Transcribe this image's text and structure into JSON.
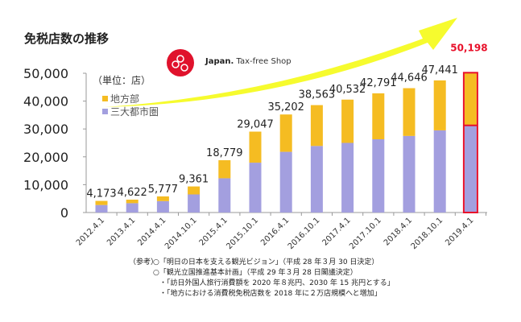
{
  "chart_data": {
    "type": "bar",
    "stacked": true,
    "title": "免税店数の推移",
    "unit_label": "（単位：店）",
    "categories": [
      "2012.4.1",
      "2013.4.1",
      "2014.4.1",
      "2014.10.1",
      "2015.4.1",
      "2015.10.1",
      "2016.4.1",
      "2016.10.1",
      "2017.4.1",
      "2017.10.1",
      "2018.4.1",
      "2018.10.1",
      "2019.4.1"
    ],
    "totals": [
      4173,
      4622,
      5777,
      9361,
      18779,
      29047,
      35202,
      38563,
      40532,
      42791,
      44646,
      47441,
      50198
    ],
    "total_labels": [
      "4,173",
      "4,622",
      "5,777",
      "9,361",
      "18,779",
      "29,047",
      "35,202",
      "38,563",
      "40,532",
      "42,791",
      "44,646",
      "47,441",
      "50,198"
    ],
    "series": [
      {
        "name": "三大都市圏",
        "color": "#a39fdf",
        "values": [
          2700,
          3350,
          4100,
          6500,
          12300,
          17900,
          21800,
          23900,
          25000,
          26300,
          27500,
          29500,
          31300
        ]
      },
      {
        "name": "地方部",
        "color": "#f5bc22",
        "values": [
          1473,
          1272,
          1677,
          2861,
          6479,
          11147,
          13402,
          14663,
          15532,
          16491,
          17146,
          17941,
          18898
        ]
      }
    ],
    "highlight_index": 12,
    "highlight_color": "#e8102a",
    "ylim": [
      0,
      50000
    ],
    "yticks": [
      0,
      10000,
      20000,
      30000,
      40000,
      50000
    ],
    "ytick_labels": [
      "0",
      "10,000",
      "20,000",
      "30,000",
      "40,000",
      "50,000"
    ],
    "legend_placement": "top-left"
  },
  "logo": {
    "brand": "Japan.",
    "text": "Tax-free Shop"
  },
  "notes": {
    "label": "（参考）",
    "lines": [
      "○「明日の日本を支える観光ビジョン」（平成 28 年３月 30 日決定）",
      "○「観光立国推進基本計画」（平成 29 年３月 28 日閣議決定）",
      "・「訪日外国人旅行消費額を 2020 年８兆円、2030 年 15 兆円とする」",
      "・「地方における消費税免税店数を 2018 年に２万店規模へと増加」"
    ]
  }
}
